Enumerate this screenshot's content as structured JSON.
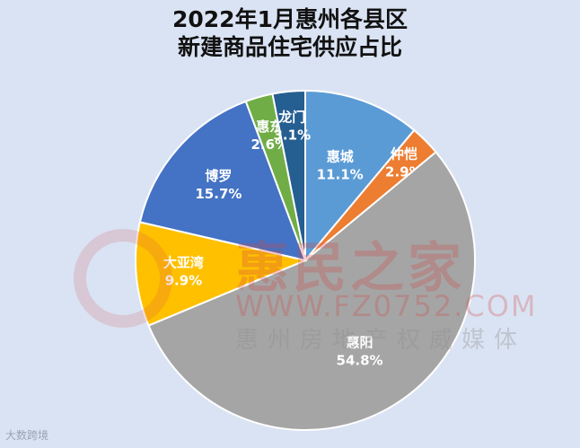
{
  "chart_data": {
    "type": "pie",
    "title": "2022年1月惠州各县区新建商品住宅供应占比",
    "title_lines": [
      "2022年1月惠州各县区",
      "新建商品住宅供应占比"
    ],
    "categories": [
      "惠城",
      "仲恺",
      "惠阳",
      "大亚湾",
      "博罗",
      "惠东",
      "龙门"
    ],
    "values": [
      11.1,
      2.9,
      54.8,
      9.9,
      15.7,
      2.6,
      3.1
    ],
    "labels": [
      "11.1%",
      "2.9%",
      "54.8%",
      "9.9%",
      "15.7%",
      "2.6%",
      "3.1%"
    ],
    "colors": [
      "#5b9bd5",
      "#ed7d31",
      "#a5a5a5",
      "#ffc000",
      "#4472c4",
      "#70ad47",
      "#255e91"
    ],
    "start_angle_deg": 0,
    "direction": "clockwise",
    "legend": "none",
    "unit": "%"
  },
  "watermark": {
    "brand": "惠民之家",
    "url": "WWW.FZ0752.COM",
    "tagline": "惠州房地产权威媒体"
  },
  "footer": {
    "source": "大数跨境"
  }
}
